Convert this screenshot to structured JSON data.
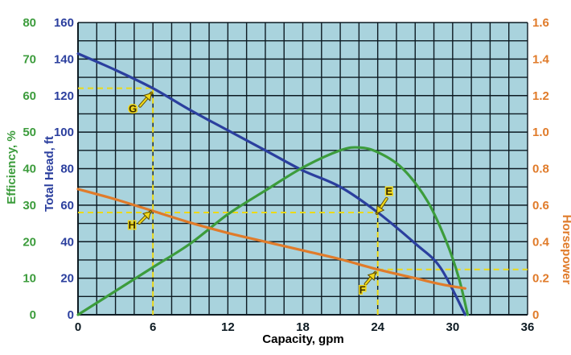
{
  "chart_data": {
    "type": "line",
    "xlabel": "Capacity, gpm",
    "x_ticks": [
      "0",
      "6",
      "12",
      "18",
      "24",
      "30",
      "36"
    ],
    "xlim": [
      0,
      36
    ],
    "axes": {
      "head": {
        "label": "Total Head, ft",
        "ticks": [
          "0",
          "20",
          "40",
          "60",
          "80",
          "100",
          "120",
          "140",
          "160"
        ],
        "lim": [
          0,
          160
        ],
        "color": "#2b3f9e"
      },
      "efficiency": {
        "label": "Efficiency, %",
        "ticks": [
          "0",
          "10",
          "20",
          "30",
          "40",
          "50",
          "60",
          "70",
          "80"
        ],
        "lim": [
          0,
          80
        ],
        "color": "#3c9c3c"
      },
      "horsepower": {
        "label": "Horsepower",
        "ticks": [
          "0",
          "0.2",
          "0.4",
          "0.6",
          "0.8",
          "1.0",
          "1.2",
          "1.4",
          "1.6"
        ],
        "lim": [
          0,
          2.0
        ],
        "color": "#e07b2a"
      }
    },
    "grid": true,
    "colors": {
      "plot_bg": "#a9d3dd",
      "grid": "#0d1a22",
      "guide": "#ecd915",
      "arrow": "#f0d81a"
    },
    "series": [
      {
        "key": "head",
        "axis": "head",
        "color": "#2b3f9e",
        "points": [
          [
            0,
            143
          ],
          [
            3,
            134
          ],
          [
            6,
            124
          ],
          [
            9,
            112
          ],
          [
            12,
            101
          ],
          [
            15,
            90
          ],
          [
            18,
            79
          ],
          [
            21,
            70
          ],
          [
            24,
            56
          ],
          [
            27,
            39
          ],
          [
            29,
            26
          ],
          [
            31,
            0
          ]
        ]
      },
      {
        "key": "efficiency",
        "axis": "efficiency",
        "color": "#3c9c3c",
        "points": [
          [
            0,
            0
          ],
          [
            3,
            6.5
          ],
          [
            6,
            13
          ],
          [
            9,
            19.5
          ],
          [
            12,
            27.5
          ],
          [
            15,
            34
          ],
          [
            18,
            40.3
          ],
          [
            21,
            45
          ],
          [
            22.5,
            45.8
          ],
          [
            24,
            44.5
          ],
          [
            26,
            40
          ],
          [
            28,
            31
          ],
          [
            29.5,
            20
          ],
          [
            30.5,
            10
          ],
          [
            31.2,
            0
          ]
        ]
      },
      {
        "key": "horsepower",
        "axis": "horsepower",
        "color": "#e07b2a",
        "points": [
          [
            0,
            0.86
          ],
          [
            3,
            0.79
          ],
          [
            6,
            0.71
          ],
          [
            9,
            0.63
          ],
          [
            12,
            0.56
          ],
          [
            15,
            0.5
          ],
          [
            18,
            0.44
          ],
          [
            21,
            0.38
          ],
          [
            24,
            0.31
          ],
          [
            27,
            0.25
          ],
          [
            29,
            0.21
          ],
          [
            31,
            0.18
          ]
        ]
      }
    ],
    "guides": [
      {
        "label": "G",
        "x": 6,
        "y_head": 124,
        "to": "left"
      },
      {
        "label": "H",
        "x": 6,
        "y_head": 0
      },
      {
        "label": "E",
        "x": 24,
        "y_head": 56,
        "to": "left"
      },
      {
        "label": "F",
        "x": 24,
        "y_hp": 0.31,
        "to": "right"
      }
    ],
    "markers": [
      "G",
      "H",
      "E",
      "F"
    ]
  }
}
